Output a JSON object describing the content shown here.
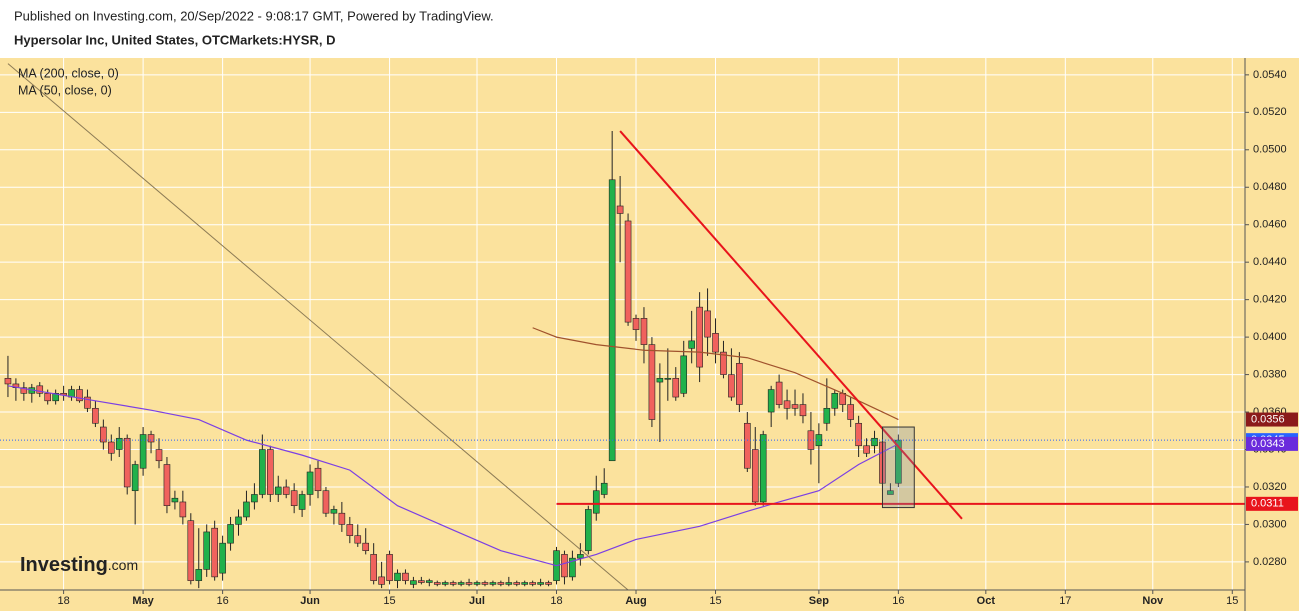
{
  "header": {
    "published": "Published on Investing.com, 20/Sep/2022 - 9:08:17 GMT, Powered by TradingView.",
    "symbol": "Hypersolar Inc, United States, OTCMarkets:HYSR, D"
  },
  "chart_data": {
    "type": "candlestick",
    "logo": "Investing",
    "logo_suffix": ".com",
    "up_color": "#21b14b",
    "down_color": "#f0625d",
    "open": [
      0.0378,
      0.0375,
      0.0373,
      0.037,
      0.0374,
      0.037,
      0.0366,
      0.037,
      0.0368,
      0.0372,
      0.0368,
      0.0362,
      0.0352,
      0.0344,
      0.034,
      0.0346,
      0.0318,
      0.033,
      0.0348,
      0.034,
      0.0332,
      0.0312,
      0.0312,
      0.0302,
      0.027,
      0.0276,
      0.0298,
      0.0274,
      0.029,
      0.03,
      0.0304,
      0.0312,
      0.0316,
      0.034,
      0.0316,
      0.032,
      0.0318,
      0.0308,
      0.0316,
      0.033,
      0.0318,
      0.0306,
      0.0306,
      0.03,
      0.0294,
      0.029,
      0.0284,
      0.0272,
      0.0284,
      0.027,
      0.0274,
      0.0268,
      0.027,
      0.0269,
      0.0269,
      0.0268,
      0.0269,
      0.0268,
      0.0269,
      0.0268,
      0.0269,
      0.0268,
      0.0269,
      0.0268,
      0.0269,
      0.0268,
      0.0269,
      0.0268,
      0.0269,
      0.027,
      0.0284,
      0.0272,
      0.0282,
      0.0286,
      0.0306,
      0.0316,
      0.0334,
      0.047,
      0.0462,
      0.041,
      0.041,
      0.0396,
      0.0376,
      0.0378,
      0.0378,
      0.037,
      0.0394,
      0.0416,
      0.0414,
      0.0402,
      0.0392,
      0.038,
      0.0386,
      0.0354,
      0.034,
      0.0312,
      0.036,
      0.0376,
      0.0366,
      0.0364,
      0.0364,
      0.035,
      0.0342,
      0.0354,
      0.0362,
      0.037,
      0.0364,
      0.0354,
      0.0342,
      0.0342,
      0.0344,
      0.0316,
      0.0322
    ],
    "high": [
      0.039,
      0.0378,
      0.0376,
      0.0375,
      0.0376,
      0.0372,
      0.0372,
      0.0374,
      0.0374,
      0.0374,
      0.0372,
      0.0366,
      0.0356,
      0.0348,
      0.0352,
      0.0348,
      0.0334,
      0.0352,
      0.035,
      0.0346,
      0.0336,
      0.0318,
      0.0318,
      0.0306,
      0.0298,
      0.03,
      0.0302,
      0.0294,
      0.0304,
      0.0308,
      0.0318,
      0.0322,
      0.0348,
      0.0342,
      0.0326,
      0.0324,
      0.0322,
      0.0318,
      0.0332,
      0.0334,
      0.032,
      0.031,
      0.0312,
      0.0304,
      0.03,
      0.0298,
      0.029,
      0.028,
      0.0286,
      0.0276,
      0.0276,
      0.0272,
      0.0272,
      0.0271,
      0.027,
      0.027,
      0.027,
      0.027,
      0.0271,
      0.027,
      0.027,
      0.027,
      0.027,
      0.0272,
      0.027,
      0.027,
      0.027,
      0.0271,
      0.027,
      0.0288,
      0.0286,
      0.0286,
      0.029,
      0.031,
      0.0326,
      0.033,
      0.051,
      0.0486,
      0.0466,
      0.0412,
      0.0416,
      0.04,
      0.0386,
      0.0394,
      0.0384,
      0.0398,
      0.0414,
      0.0424,
      0.0426,
      0.041,
      0.0398,
      0.0394,
      0.0392,
      0.036,
      0.0352,
      0.035,
      0.0374,
      0.038,
      0.0372,
      0.0372,
      0.037,
      0.036,
      0.0354,
      0.0378,
      0.0372,
      0.0372,
      0.0368,
      0.0358,
      0.0346,
      0.035,
      0.0346,
      0.0322,
      0.0348
    ],
    "low": [
      0.0368,
      0.0366,
      0.0366,
      0.0365,
      0.0368,
      0.0364,
      0.0364,
      0.0366,
      0.0366,
      0.0365,
      0.036,
      0.0352,
      0.034,
      0.0334,
      0.0336,
      0.0316,
      0.03,
      0.0326,
      0.0338,
      0.033,
      0.0306,
      0.0308,
      0.03,
      0.0268,
      0.0266,
      0.0272,
      0.027,
      0.027,
      0.0286,
      0.0294,
      0.0302,
      0.0308,
      0.0314,
      0.0312,
      0.0312,
      0.0314,
      0.0306,
      0.0304,
      0.031,
      0.0314,
      0.0304,
      0.03,
      0.0296,
      0.029,
      0.0288,
      0.0284,
      0.0268,
      0.0266,
      0.0268,
      0.0266,
      0.0268,
      0.0266,
      0.0268,
      0.0267,
      0.0267,
      0.0267,
      0.0267,
      0.0267,
      0.0267,
      0.0267,
      0.0267,
      0.0267,
      0.0267,
      0.0267,
      0.0267,
      0.0267,
      0.0267,
      0.0267,
      0.0267,
      0.0268,
      0.0268,
      0.027,
      0.0278,
      0.0284,
      0.0302,
      0.0314,
      0.0334,
      0.044,
      0.0406,
      0.0398,
      0.0386,
      0.0352,
      0.0344,
      0.0366,
      0.0366,
      0.0368,
      0.0386,
      0.0376,
      0.039,
      0.0386,
      0.0378,
      0.0366,
      0.036,
      0.0328,
      0.031,
      0.031,
      0.0352,
      0.0362,
      0.0356,
      0.0358,
      0.0354,
      0.0332,
      0.0322,
      0.035,
      0.0358,
      0.036,
      0.0352,
      0.0336,
      0.0336,
      0.0338,
      0.0318,
      0.0316,
      0.032
    ],
    "close": [
      0.0375,
      0.0373,
      0.037,
      0.0373,
      0.037,
      0.0366,
      0.037,
      0.0369,
      0.0372,
      0.0366,
      0.0362,
      0.0354,
      0.0344,
      0.0338,
      0.0346,
      0.032,
      0.0332,
      0.0348,
      0.0344,
      0.0334,
      0.031,
      0.0314,
      0.0304,
      0.027,
      0.0276,
      0.0296,
      0.0272,
      0.029,
      0.03,
      0.0304,
      0.0312,
      0.0316,
      0.034,
      0.0316,
      0.032,
      0.0316,
      0.031,
      0.0316,
      0.0328,
      0.0318,
      0.0306,
      0.0308,
      0.03,
      0.0294,
      0.029,
      0.0286,
      0.027,
      0.0268,
      0.027,
      0.0274,
      0.027,
      0.027,
      0.0269,
      0.027,
      0.0268,
      0.0269,
      0.0268,
      0.0269,
      0.0268,
      0.0269,
      0.0268,
      0.0269,
      0.0268,
      0.0269,
      0.0268,
      0.0269,
      0.0268,
      0.0269,
      0.0268,
      0.0286,
      0.0272,
      0.0282,
      0.0284,
      0.0308,
      0.0318,
      0.0322,
      0.0484,
      0.0466,
      0.0408,
      0.0404,
      0.0396,
      0.0356,
      0.0378,
      0.0378,
      0.0368,
      0.039,
      0.0398,
      0.0384,
      0.04,
      0.0392,
      0.038,
      0.0368,
      0.0364,
      0.033,
      0.0312,
      0.0348,
      0.0372,
      0.0364,
      0.0362,
      0.0362,
      0.0358,
      0.034,
      0.0348,
      0.0362,
      0.037,
      0.0364,
      0.0356,
      0.0342,
      0.0338,
      0.0346,
      0.0322,
      0.0318,
      0.0345
    ],
    "series": [
      {
        "name": "MA (200, close, 0)",
        "color": "#a0522d",
        "x": [
          66,
          69,
          74,
          80,
          87,
          93,
          99,
          105,
          112
        ],
        "values": [
          0.0405,
          0.04,
          0.0396,
          0.0393,
          0.0392,
          0.0389,
          0.0381,
          0.037,
          0.0356
        ]
      },
      {
        "name": "MA (50, close, 0)",
        "color": "#7b3fe4",
        "x": [
          0,
          11,
          18,
          24,
          30,
          37,
          43,
          49,
          56,
          62,
          69,
          74,
          79,
          87,
          93,
          97,
          102,
          107,
          112
        ],
        "values": [
          0.0374,
          0.0366,
          0.0361,
          0.0356,
          0.0345,
          0.0337,
          0.0329,
          0.031,
          0.0297,
          0.0286,
          0.0278,
          0.0284,
          0.0292,
          0.0299,
          0.0307,
          0.0312,
          0.0318,
          0.0332,
          0.0343
        ]
      }
    ],
    "lines": [
      {
        "color": "#e8141c",
        "x": [
          77,
          120
        ],
        "values": [
          0.051,
          0.0303
        ]
      },
      {
        "color": "#8c7b55",
        "x": [
          0,
          78
        ],
        "values": [
          0.0546,
          0.0265
        ]
      },
      {
        "color": "#e8141c",
        "x": [
          69,
          155.6
        ],
        "values": [
          0.0311,
          0.0311
        ]
      }
    ],
    "box": {
      "x": [
        110,
        114
      ],
      "values": [
        0.0352,
        0.0309
      ]
    },
    "markers": [
      {
        "value": 0.0356,
        "color": "#8b1a1a"
      },
      {
        "value": 0.0345,
        "color": "#2962ff",
        "line": true
      },
      {
        "value": 0.0343,
        "color": "#6a2bdc"
      },
      {
        "value": 0.0311,
        "color": "#e8141c"
      }
    ],
    "xlim": [
      -1,
      155.6
    ],
    "ylim": [
      0.0265,
      0.0549
    ],
    "xticks": [
      {
        "value": 7,
        "label": "18"
      },
      {
        "value": 17,
        "label": "May"
      },
      {
        "value": 27,
        "label": "16"
      },
      {
        "value": 38,
        "label": "Jun"
      },
      {
        "value": 48,
        "label": "15"
      },
      {
        "value": 59,
        "label": "Jul"
      },
      {
        "value": 69,
        "label": "18"
      },
      {
        "value": 79,
        "label": "Aug"
      },
      {
        "value": 89,
        "label": "15"
      },
      {
        "value": 102,
        "label": "Sep"
      },
      {
        "value": 112,
        "label": "16"
      },
      {
        "value": 123,
        "label": "Oct"
      },
      {
        "value": 133,
        "label": "17"
      },
      {
        "value": 144,
        "label": "Nov"
      },
      {
        "value": 154,
        "label": "15"
      }
    ],
    "yticks": [
      {
        "value": 0.028,
        "label": "0.0280"
      },
      {
        "value": 0.03,
        "label": "0.0300"
      },
      {
        "value": 0.032,
        "label": "0.0320"
      },
      {
        "value": 0.034,
        "label": "0.0340"
      },
      {
        "value": 0.036,
        "label": "0.0360"
      },
      {
        "value": 0.038,
        "label": "0.0380"
      },
      {
        "value": 0.04,
        "label": "0.0400"
      },
      {
        "value": 0.042,
        "label": "0.0420"
      },
      {
        "value": 0.044,
        "label": "0.0440"
      },
      {
        "value": 0.046,
        "label": "0.0460"
      },
      {
        "value": 0.048,
        "label": "0.0480"
      },
      {
        "value": 0.05,
        "label": "0.0500"
      },
      {
        "value": 0.052,
        "label": "0.0520"
      },
      {
        "value": 0.054,
        "label": "0.0540"
      }
    ],
    "grid": true
  }
}
